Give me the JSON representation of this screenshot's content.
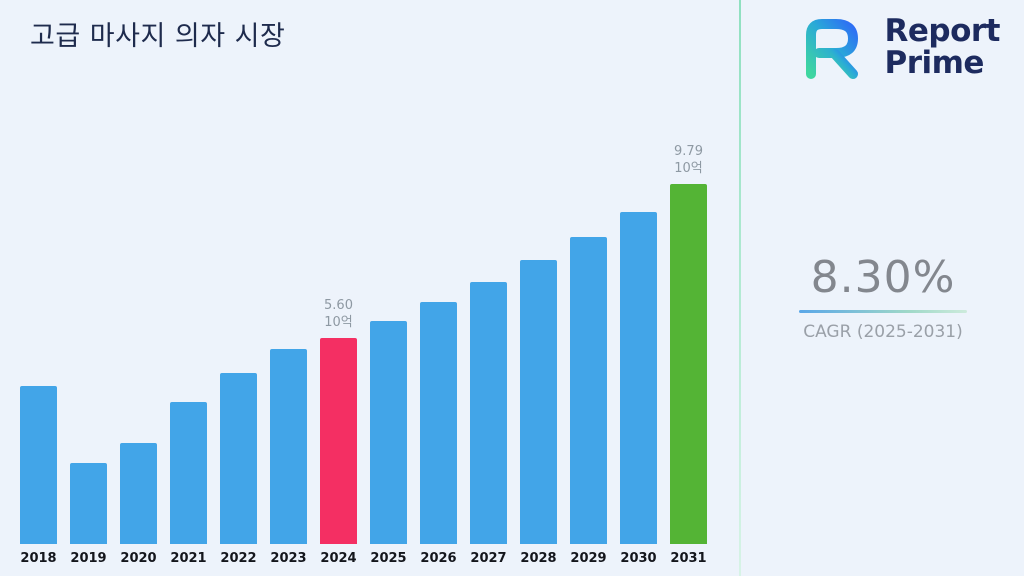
{
  "header": {
    "title": "고급 마사지 의자 시장"
  },
  "brand": {
    "line1": "Report",
    "line2": "Prime",
    "logo_icon": "report-prime-logo-icon"
  },
  "cagr": {
    "value": "8.30%",
    "label": "CAGR (2025-2031)"
  },
  "colors": {
    "background": "#edf3fb",
    "bar_blue": "#42a5e8",
    "bar_pink": "#f42f63",
    "bar_green": "#54b435",
    "divider_green": "#a5e6c8",
    "brand_navy": "#1d2b5f",
    "cagr_gray": "#83878e"
  },
  "chart_data": {
    "type": "bar",
    "title": "고급 마사지 의자 시장",
    "xlabel": "",
    "ylabel": "",
    "unit": "10억",
    "ylim": [
      0,
      10.5
    ],
    "grid": false,
    "legend": false,
    "categories": [
      "2018",
      "2019",
      "2020",
      "2021",
      "2022",
      "2023",
      "2024",
      "2025",
      "2026",
      "2027",
      "2028",
      "2029",
      "2030",
      "2031"
    ],
    "values": [
      4.3,
      2.2,
      2.75,
      3.85,
      4.65,
      5.3,
      5.6,
      6.07,
      6.57,
      7.12,
      7.71,
      8.35,
      9.04,
      9.79
    ],
    "bar_color_default": "#42a5e8",
    "bar_color_overrides": {
      "2024": "#f42f63",
      "2031": "#54b435"
    },
    "annotations": [
      {
        "category": "2024",
        "lines": [
          "5.60",
          "10억"
        ]
      },
      {
        "category": "2031",
        "lines": [
          "9.79",
          "10억"
        ]
      }
    ]
  }
}
